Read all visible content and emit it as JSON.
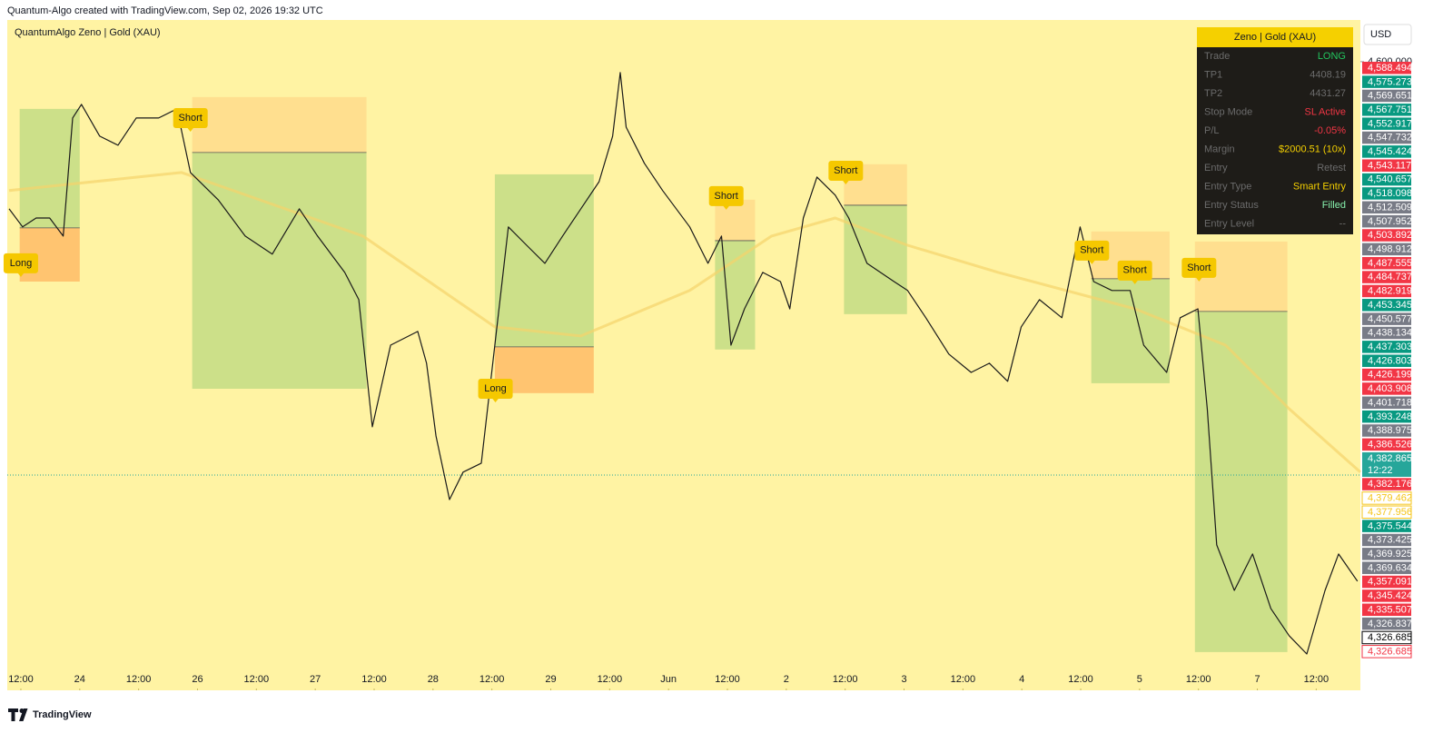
{
  "header": {
    "caption": "Quantum-Algo created with TradingView.com, Sep 02, 2026 19:32 UTC"
  },
  "footer": {
    "brand": "TradingView"
  },
  "chart_data": {
    "type": "line",
    "title": "QuantumAlgo Zeno | Gold (XAU)",
    "currency": "USD",
    "xlim": [
      -0.2,
      22.75
    ],
    "xticks": [
      {
        "value": 0,
        "label": "12:00"
      },
      {
        "value": 1,
        "label": "24"
      },
      {
        "value": 2,
        "label": "12:00"
      },
      {
        "value": 3,
        "label": "26"
      },
      {
        "value": 4,
        "label": "12:00"
      },
      {
        "value": 5,
        "label": "27"
      },
      {
        "value": 6,
        "label": "12:00"
      },
      {
        "value": 7,
        "label": "28"
      },
      {
        "value": 8,
        "label": "12:00"
      },
      {
        "value": 9,
        "label": "29"
      },
      {
        "value": 10,
        "label": "12:00"
      },
      {
        "value": 11,
        "label": "Jun"
      },
      {
        "value": 12,
        "label": "12:00"
      },
      {
        "value": 13,
        "label": "2"
      },
      {
        "value": 14,
        "label": "12:00"
      },
      {
        "value": 15,
        "label": "3"
      },
      {
        "value": 16,
        "label": "12:00"
      },
      {
        "value": 17,
        "label": "4"
      },
      {
        "value": 18,
        "label": "12:00"
      },
      {
        "value": 19,
        "label": "5"
      },
      {
        "value": 20,
        "label": "12:00"
      },
      {
        "value": 21,
        "label": "7"
      },
      {
        "value": 22,
        "label": "12:00"
      }
    ],
    "ylim": [
      4269.8,
      4621.9
    ],
    "yticks": [
      {
        "value": 4600,
        "label": "4,600.000"
      }
    ],
    "series": [
      {
        "color": "#1a1a1a",
        "x": [
          -0.2,
          0.03,
          0.26,
          0.49,
          0.72,
          0.88,
          1.03,
          1.34,
          1.65,
          1.96,
          2.34,
          2.65,
          2.88,
          3.35,
          3.81,
          4.27,
          4.73,
          5.04,
          5.5,
          5.74,
          5.97,
          6.28,
          6.74,
          6.89,
          7.05,
          7.28,
          7.51,
          7.82,
          8.05,
          8.28,
          8.59,
          8.9,
          9.2,
          9.51,
          9.82,
          10.05,
          10.18,
          10.28,
          10.59,
          10.9,
          11.36,
          11.67,
          11.9,
          12.06,
          12.29,
          12.6,
          12.9,
          13.06,
          13.29,
          13.52,
          13.83,
          14.06,
          14.37,
          14.83,
          15.06,
          15.37,
          15.76,
          16.14,
          16.45,
          16.76,
          16.99,
          17.3,
          17.68,
          17.99,
          18.22,
          18.53,
          18.84,
          19.07,
          19.46,
          19.69,
          19.99,
          20.15,
          20.31,
          20.61,
          20.92,
          21.23,
          21.54,
          21.84,
          22.15,
          22.38,
          22.7
        ],
        "values": [
          4522.7,
          4513.2,
          4517.9,
          4517.9,
          4508.4,
          4570.4,
          4577.6,
          4560.9,
          4556.1,
          4570.4,
          4570.4,
          4575.2,
          4541.8,
          4527.5,
          4508.4,
          4498.9,
          4522.7,
          4508.4,
          4489.3,
          4475.0,
          4408.2,
          4451.1,
          4458.3,
          4441.6,
          4403.4,
          4370.0,
          4384.4,
          4389.1,
          4451.1,
          4513.2,
          4503.6,
          4494.1,
          4508.4,
          4522.7,
          4537.0,
          4560.9,
          4594.3,
          4565.6,
          4546.6,
          4532.3,
          4513.2,
          4494.1,
          4508.4,
          4451.1,
          4470.2,
          4489.3,
          4484.5,
          4470.2,
          4517.9,
          4539.4,
          4529.9,
          4517.9,
          4494.1,
          4484.5,
          4479.8,
          4465.5,
          4446.4,
          4436.8,
          4441.6,
          4432.1,
          4460.7,
          4475.0,
          4465.5,
          4513.2,
          4484.5,
          4479.8,
          4479.8,
          4451.1,
          4436.8,
          4465.5,
          4470.2,
          4417.7,
          4346.2,
          4322.3,
          4341.4,
          4312.8,
          4298.5,
          4288.9,
          4322.3,
          4341.4,
          4327.1
        ]
      },
      {
        "color": "#f5d36b",
        "x": [
          -0.2,
          2.73,
          5.81,
          8.05,
          9.51,
          11.36,
          12.75,
          13.83,
          15.06,
          16.6,
          18.92,
          20.46,
          21.54,
          22.75
        ],
        "values": [
          4532.3,
          4541.8,
          4508.4,
          4460.7,
          4455.9,
          4479.8,
          4508.4,
          4517.9,
          4503.6,
          4489.3,
          4470.2,
          4451.1,
          4417.7,
          4384.4
        ]
      }
    ],
    "trades": [
      {
        "x0": -0.02,
        "x1": 1.0,
        "stop": 4484.5,
        "entry": 4512.7,
        "target": 4575.2
      },
      {
        "x0": 2.91,
        "x1": 5.87,
        "stop": 4581.4,
        "entry": 4552.3,
        "target": 4428.2
      },
      {
        "x0": 8.05,
        "x1": 9.73,
        "stop": 4425.9,
        "entry": 4450.2,
        "target": 4540.8
      },
      {
        "x0": 11.79,
        "x1": 12.47,
        "stop": 4527.5,
        "entry": 4506.0,
        "target": 4448.8
      },
      {
        "x0": 13.98,
        "x1": 15.05,
        "stop": 4546.1,
        "entry": 4524.6,
        "target": 4467.4
      },
      {
        "x0": 18.18,
        "x1": 19.51,
        "stop": 4510.8,
        "entry": 4486.0,
        "target": 4431.1
      },
      {
        "x0": 19.94,
        "x1": 21.51,
        "stop": 4505.5,
        "entry": 4468.8,
        "target": 4289.9
      }
    ],
    "signals": [
      {
        "text": "Long",
        "x": 0.0,
        "price": 4494.1
      },
      {
        "text": "Short",
        "x": 2.88,
        "price": 4570.4
      },
      {
        "text": "Long",
        "x": 8.06,
        "price": 4428.2
      },
      {
        "text": "Short",
        "x": 11.98,
        "price": 4529.4
      },
      {
        "text": "Short",
        "x": 14.01,
        "price": 4542.7
      },
      {
        "text": "Short",
        "x": 18.19,
        "price": 4500.8
      },
      {
        "text": "Short",
        "x": 18.92,
        "price": 4490.3
      },
      {
        "text": "Short",
        "x": 20.01,
        "price": 4491.7
      }
    ],
    "price_tags": [
      {
        "value": 4588.494,
        "label": "4,588.494",
        "color": "#f23645"
      },
      {
        "value": 4575.273,
        "label": "4,575.273",
        "color": "#089981"
      },
      {
        "value": 4569.651,
        "label": "4,569.651",
        "color": "#787b86"
      },
      {
        "value": 4567.751,
        "label": "4,567.751",
        "color": "#089981"
      },
      {
        "value": 4552.917,
        "label": "4,552.917",
        "color": "#089981"
      },
      {
        "value": 4547.732,
        "label": "4,547.732",
        "color": "#787b86"
      },
      {
        "value": 4545.424,
        "label": "4,545.424",
        "color": "#089981"
      },
      {
        "value": 4543.117,
        "label": "4,543.117",
        "color": "#f23645"
      },
      {
        "value": 4540.657,
        "label": "4,540.657",
        "color": "#089981"
      },
      {
        "value": 4518.098,
        "label": "4,518.098",
        "color": "#089981"
      },
      {
        "value": 4512.509,
        "label": "4,512.509",
        "color": "#787b86"
      },
      {
        "value": 4507.952,
        "label": "4,507.952",
        "color": "#787b86"
      },
      {
        "value": 4503.892,
        "label": "4,503.892",
        "color": "#f23645"
      },
      {
        "value": 4498.912,
        "label": "4,498.912",
        "color": "#787b86"
      },
      {
        "value": 4487.555,
        "label": "4,487.555",
        "color": "#f23645"
      },
      {
        "value": 4484.737,
        "label": "4,484.737",
        "color": "#f23645"
      },
      {
        "value": 4482.919,
        "label": "4,482.919",
        "color": "#f23645"
      },
      {
        "value": 4453.345,
        "label": "4,453.345",
        "color": "#089981"
      },
      {
        "value": 4450.577,
        "label": "4,450.577",
        "color": "#787b86"
      },
      {
        "value": 4438.134,
        "label": "4,438.134",
        "color": "#787b86"
      },
      {
        "value": 4437.303,
        "label": "4,437.303",
        "color": "#089981"
      },
      {
        "value": 4426.803,
        "label": "4,426.803",
        "color": "#089981"
      },
      {
        "value": 4426.199,
        "label": "4,426.199",
        "color": "#f23645"
      },
      {
        "value": 4403.908,
        "label": "4,403.908",
        "color": "#f23645"
      },
      {
        "value": 4401.718,
        "label": "4,401.718",
        "color": "#787b86"
      },
      {
        "value": 4393.248,
        "label": "4,393.248",
        "color": "#089981"
      },
      {
        "value": 4388.975,
        "label": "4,388.975",
        "color": "#787b86"
      },
      {
        "value": 4386.526,
        "label": "4,386.526",
        "color": "#f23645"
      },
      {
        "value": 4382.865,
        "label": "4,382.865",
        "color": "#26a69a",
        "countdown": "12:22",
        "current": true
      },
      {
        "value": 4382.176,
        "label": "4,382.176",
        "color": "#f23645"
      },
      {
        "value": 4379.462,
        "label": "4,379.462",
        "color": "#f5c518",
        "outline": true
      },
      {
        "value": 4377.956,
        "label": "4,377.956",
        "color": "#f5c518",
        "outline": true
      },
      {
        "value": 4375.544,
        "label": "4,375.544",
        "color": "#089981"
      },
      {
        "value": 4373.425,
        "label": "4,373.425",
        "color": "#787b86"
      },
      {
        "value": 4369.925,
        "label": "4,369.925",
        "color": "#787b86"
      },
      {
        "value": 4369.634,
        "label": "4,369.634",
        "color": "#787b86"
      },
      {
        "value": 4357.091,
        "label": "4,357.091",
        "color": "#f23645"
      },
      {
        "value": 4345.424,
        "label": "4,345.424",
        "color": "#f23645"
      },
      {
        "value": 4335.507,
        "label": "4,335.507",
        "color": "#f23645"
      },
      {
        "value": 4326.837,
        "label": "4,326.837",
        "color": "#787b86"
      },
      {
        "value": 4326.685,
        "label": "4,326.685",
        "color": "#000000",
        "outline": true
      },
      {
        "value": 4326.685,
        "label": "4,326.685",
        "color": "#f23645",
        "outline": true
      }
    ]
  },
  "panel": {
    "title": "Zeno | Gold (XAU)",
    "rows": [
      {
        "label": "Trade",
        "value": "LONG",
        "color": "#22c55e"
      },
      {
        "label": "TP1",
        "value": "4408.19",
        "color": "#6b6b6b"
      },
      {
        "label": "TP2",
        "value": "4431.27",
        "color": "#6b6b6b"
      },
      {
        "label": "Stop Mode",
        "value": "SL Active",
        "color": "#f23645"
      },
      {
        "label": "P/L",
        "value": "-0.05%",
        "color": "#f23645"
      },
      {
        "label": "Margin",
        "value": "$2000.51 (10x)",
        "color": "#f5d000"
      },
      {
        "label": "Entry",
        "value": "Retest",
        "color": "#6b6b6b"
      },
      {
        "label": "Entry Type",
        "value": "Smart Entry",
        "color": "#f5d000"
      },
      {
        "label": "Entry Status",
        "value": "Filled",
        "color": "#86efac"
      },
      {
        "label": "Entry Level",
        "value": "--",
        "color": "#6b6b6b"
      }
    ]
  }
}
